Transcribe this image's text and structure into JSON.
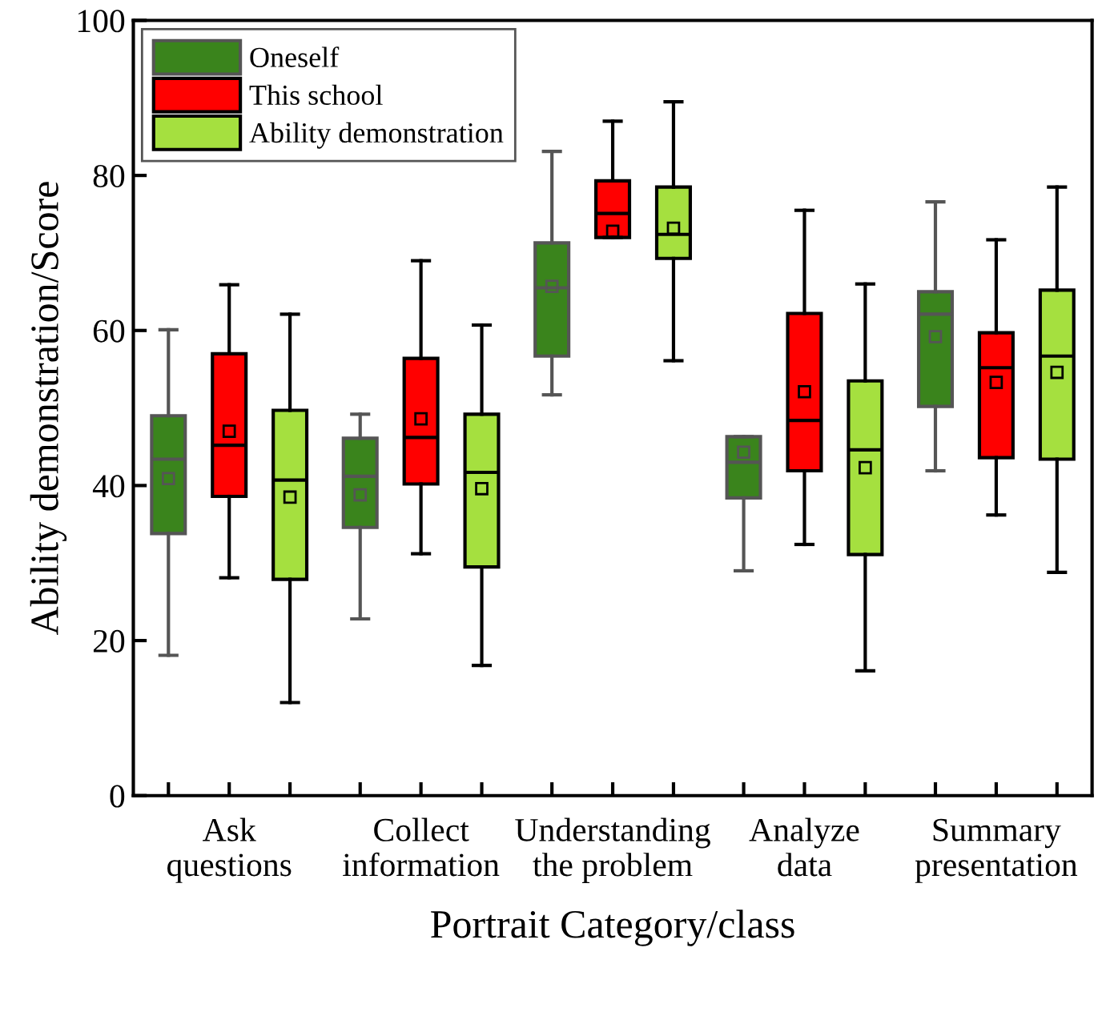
{
  "chart_data": {
    "type": "box",
    "xlabel": "Portrait Category/class",
    "ylabel": "Ability demonstration/Score",
    "categories": [
      "Ask questions",
      "Collect information",
      "Understanding the problem",
      "Analyze data",
      "Summary presentation"
    ],
    "ylim": [
      0,
      100
    ],
    "yticks": [
      0,
      20,
      40,
      60,
      80,
      100
    ],
    "grid": false,
    "legend": "top left",
    "series": [
      {
        "name": "Oneself",
        "color": "#3a841c",
        "boxes": [
          {
            "low": 18.1,
            "q1": 33.8,
            "median": 43.4,
            "q3": 49.0,
            "high": 60.1,
            "mean": 40.9
          },
          {
            "low": 22.8,
            "q1": 34.6,
            "median": 41.2,
            "q3": 46.1,
            "high": 49.2,
            "mean": 38.8
          },
          {
            "low": 51.7,
            "q1": 56.7,
            "median": 65.5,
            "q3": 71.3,
            "high": 83.1,
            "mean": 65.7
          },
          {
            "low": 29.0,
            "q1": 38.4,
            "median": 43.0,
            "q3": 46.3,
            "high": 46.3,
            "mean": 44.3
          },
          {
            "low": 41.9,
            "q1": 50.2,
            "median": 62.1,
            "q3": 65.0,
            "high": 76.6,
            "mean": 59.2
          }
        ]
      },
      {
        "name": "This school",
        "color": "#ff0000",
        "boxes": [
          {
            "low": 28.1,
            "q1": 38.6,
            "median": 45.2,
            "q3": 57.0,
            "high": 65.9,
            "mean": 47.0
          },
          {
            "low": 31.2,
            "q1": 40.2,
            "median": 46.2,
            "q3": 56.4,
            "high": 69.0,
            "mean": 48.6
          },
          {
            "low": 72.0,
            "q1": 72.0,
            "median": 75.1,
            "q3": 79.3,
            "high": 87.0,
            "mean": 72.8
          },
          {
            "low": 32.4,
            "q1": 41.9,
            "median": 48.4,
            "q3": 62.2,
            "high": 75.5,
            "mean": 52.1
          },
          {
            "low": 36.2,
            "q1": 43.6,
            "median": 55.2,
            "q3": 59.7,
            "high": 71.7,
            "mean": 53.3
          }
        ]
      },
      {
        "name": "Ability demonstration",
        "color": "#a5e03f",
        "boxes": [
          {
            "low": 12.0,
            "q1": 27.9,
            "median": 40.7,
            "q3": 49.7,
            "high": 62.1,
            "mean": 38.5
          },
          {
            "low": 16.8,
            "q1": 29.5,
            "median": 41.7,
            "q3": 49.2,
            "high": 60.7,
            "mean": 39.6
          },
          {
            "low": 56.1,
            "q1": 69.3,
            "median": 72.4,
            "q3": 78.5,
            "high": 89.5,
            "mean": 73.2
          },
          {
            "low": 16.1,
            "q1": 31.1,
            "median": 44.6,
            "q3": 53.5,
            "high": 66.0,
            "mean": 42.3
          },
          {
            "low": 28.8,
            "q1": 43.4,
            "median": 56.7,
            "q3": 65.2,
            "high": 78.5,
            "mean": 54.6
          }
        ]
      }
    ]
  }
}
